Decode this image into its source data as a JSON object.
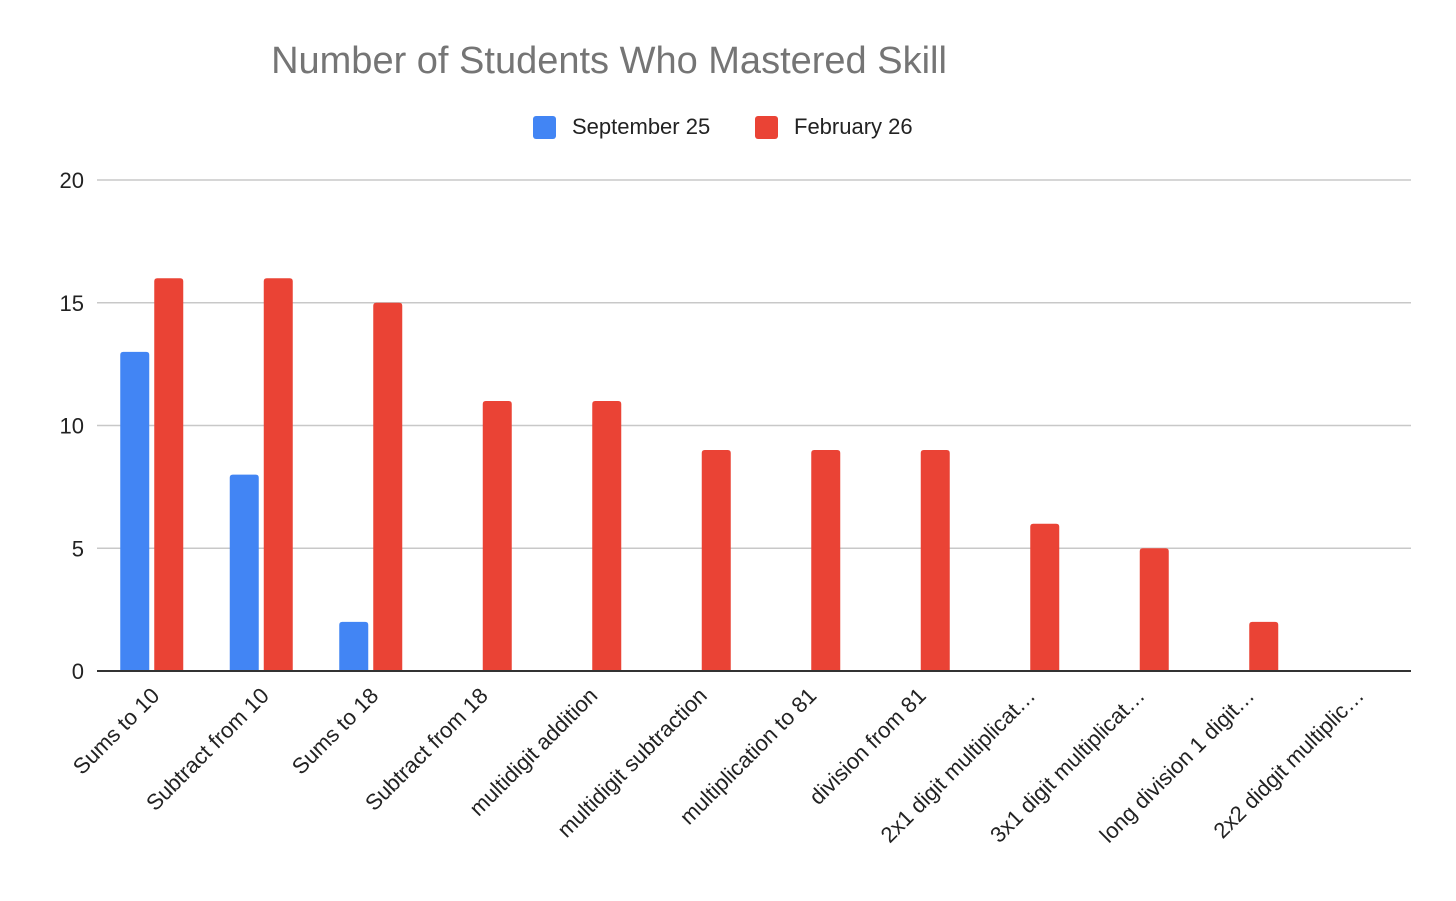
{
  "chart_data": {
    "type": "bar",
    "title": "Number of Students Who Mastered Skill",
    "xlabel": "",
    "ylabel": "",
    "categories": [
      "Sums to 10",
      "Subtract from 10",
      "Sums to 18",
      "Subtract from 18",
      "multidigit addition",
      "multidigit subtraction",
      "multiplication to 81",
      "division from 81",
      "2x1 digit multiplicat…",
      "3x1 digit multiplicat…",
      "long division 1 digit…",
      "2x2 didgit multiplic…"
    ],
    "series": [
      {
        "name": "September 25",
        "color": "#4285f4",
        "values": [
          13,
          8,
          2,
          0,
          0,
          0,
          0,
          0,
          0,
          0,
          0,
          0
        ]
      },
      {
        "name": "February 26",
        "color": "#ea4335",
        "values": [
          16,
          16,
          15,
          11,
          11,
          9,
          9,
          9,
          6,
          5,
          2,
          0
        ]
      }
    ],
    "ylim": [
      0,
      20
    ],
    "yticks": [
      0,
      5,
      10,
      15,
      20
    ],
    "grid": true,
    "legend": "top"
  }
}
